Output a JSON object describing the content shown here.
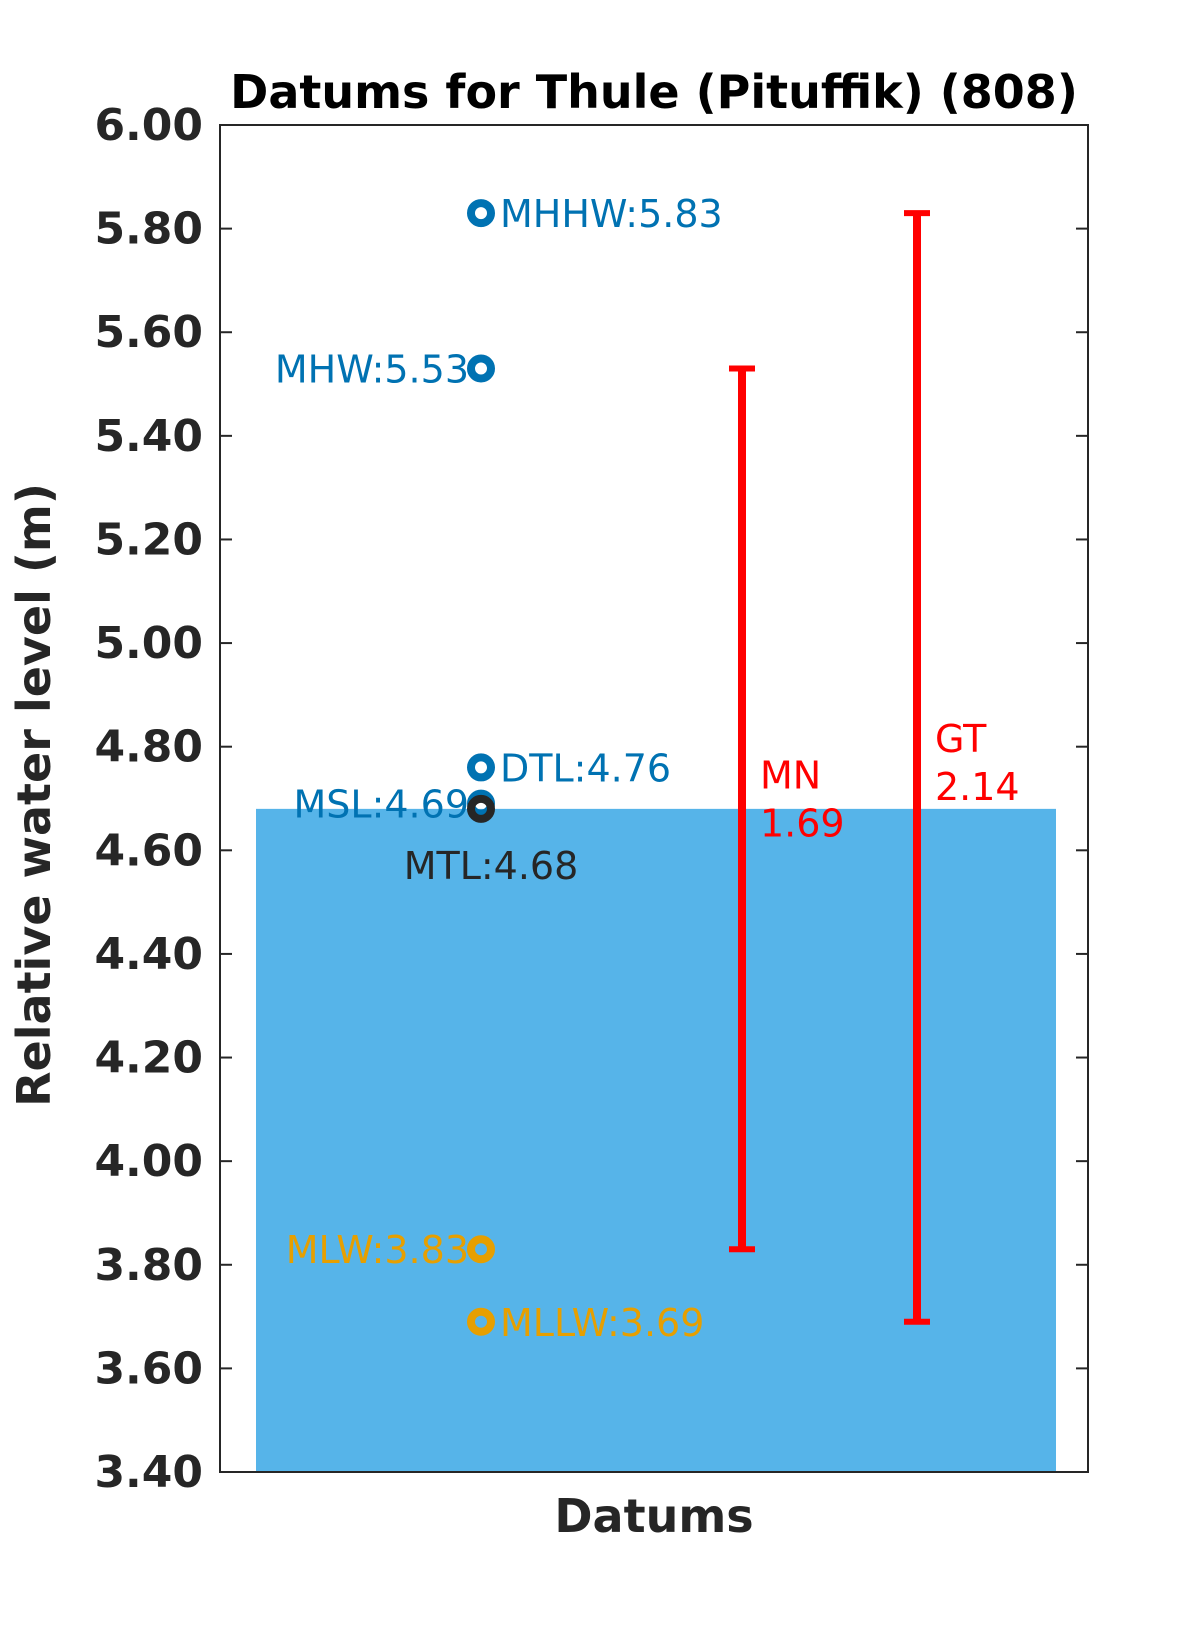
{
  "chart_data": {
    "type": "scatter",
    "title": "Datums for Thule (Pituffik) (808)",
    "xlabel": "Datums",
    "ylabel": "Relative water level (m)",
    "ylim": [
      3.4,
      6.0
    ],
    "yticks": [
      "3.40",
      "3.60",
      "3.80",
      "4.00",
      "4.20",
      "4.40",
      "4.60",
      "4.80",
      "5.00",
      "5.20",
      "5.40",
      "5.60",
      "5.80",
      "6.00"
    ],
    "grid": false,
    "legend": "none",
    "bar": {
      "value": 4.68,
      "color": "#56b4e9"
    },
    "points": [
      {
        "name": "MHHW",
        "value": 5.83,
        "label": "MHHW:5.83",
        "color": "#0072b2",
        "side": "right"
      },
      {
        "name": "MHW",
        "value": 5.53,
        "label": "MHW:5.53",
        "color": "#0072b2",
        "side": "left"
      },
      {
        "name": "DTL",
        "value": 4.76,
        "label": "DTL:4.76",
        "color": "#0072b2",
        "side": "right"
      },
      {
        "name": "MSL",
        "value": 4.69,
        "label": "MSL:4.69",
        "color": "#0072b2",
        "side": "left"
      },
      {
        "name": "MTL",
        "value": 4.68,
        "label": "MTL:4.68",
        "color": "#262626",
        "side": "below"
      },
      {
        "name": "MLW",
        "value": 3.83,
        "label": "MLW:3.83",
        "color": "#e69f00",
        "side": "left"
      },
      {
        "name": "MLLW",
        "value": 3.69,
        "label": "MLLW:3.69",
        "color": "#e69f00",
        "side": "right"
      }
    ],
    "ranges": [
      {
        "name": "MN",
        "value": "1.69",
        "low": 3.83,
        "high": 5.53,
        "label_y": 4.7,
        "color": "#ff0000"
      },
      {
        "name": "GT",
        "value": "2.14",
        "low": 3.69,
        "high": 5.83,
        "label_y": 4.77,
        "color": "#ff0000"
      }
    ]
  }
}
